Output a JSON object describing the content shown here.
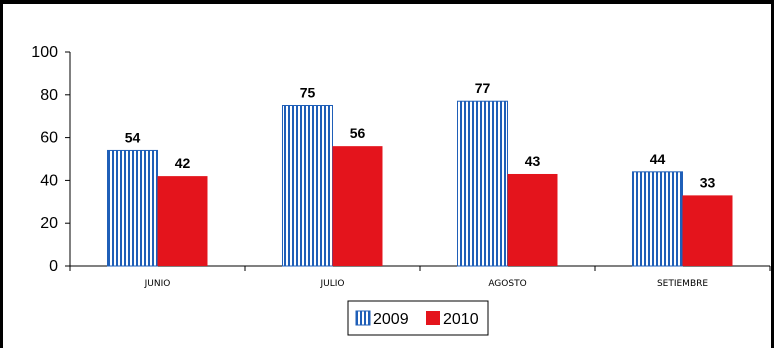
{
  "chart_data": {
    "type": "bar",
    "categories": [
      "JUNIO",
      "JULIO",
      "AGOSTO",
      "SETIEMBRE"
    ],
    "series": [
      {
        "name": "2009",
        "values": [
          54,
          75,
          77,
          44
        ],
        "color": "#1f5fb8",
        "pattern": "vertical-stripes"
      },
      {
        "name": "2010",
        "values": [
          42,
          56,
          43,
          33
        ],
        "color": "#e4141c"
      }
    ],
    "yticks": [
      "0",
      "20",
      "40",
      "60",
      "80",
      "100"
    ],
    "ylim": [
      0,
      100
    ],
    "legend": "bottom-center",
    "grid": false
  }
}
